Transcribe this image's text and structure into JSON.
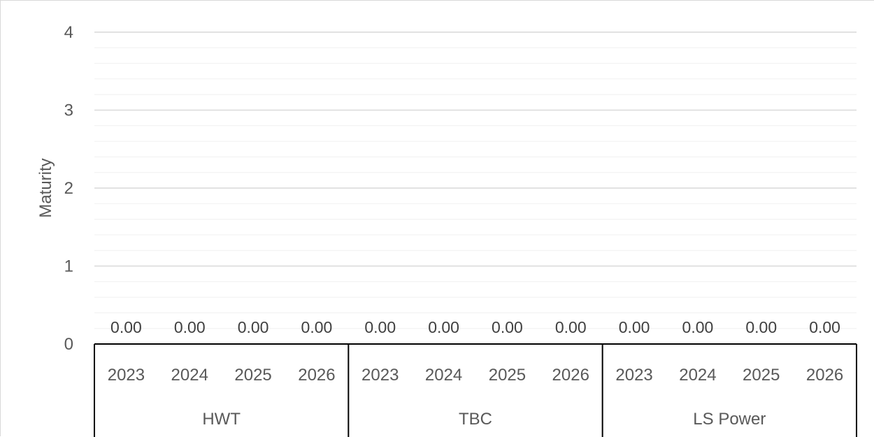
{
  "chart_data": {
    "type": "bar",
    "title": "",
    "ylabel": "Maturity",
    "xlabel": "",
    "ylim": [
      0,
      4
    ],
    "yticks": [
      "0",
      "1",
      "2",
      "3",
      "4"
    ],
    "groups": [
      {
        "name": "HWT",
        "categories": [
          "2023",
          "2024",
          "2025",
          "2026"
        ],
        "values": [
          0,
          0,
          0,
          0
        ],
        "labels": [
          "0.00",
          "0.00",
          "0.00",
          "0.00"
        ]
      },
      {
        "name": "TBC",
        "categories": [
          "2023",
          "2024",
          "2025",
          "2026"
        ],
        "values": [
          0,
          0,
          0,
          0
        ],
        "labels": [
          "0.00",
          "0.00",
          "0.00",
          "0.00"
        ]
      },
      {
        "name": "LS Power",
        "categories": [
          "2023",
          "2024",
          "2025",
          "2026"
        ],
        "values": [
          0,
          0,
          0,
          0
        ],
        "labels": [
          "0.00",
          "0.00",
          "0.00",
          "0.00"
        ]
      }
    ],
    "grid": true,
    "minor_grid": true,
    "legend": "none"
  }
}
